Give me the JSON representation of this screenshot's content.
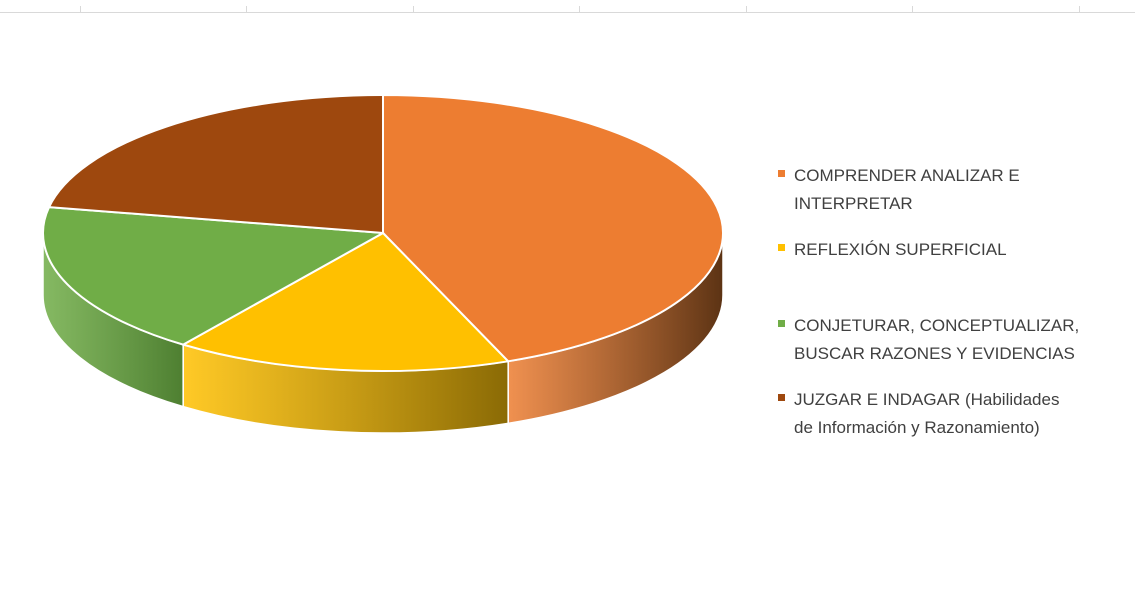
{
  "chart_data": {
    "type": "pie",
    "style": "3d",
    "legend_position": "right",
    "slices": [
      {
        "label": "COMPRENDER ANALIZAR E\nINTERPRETAR",
        "value": 44,
        "color": "#ED7D31",
        "side_color": "#5C3314"
      },
      {
        "label": "REFLEXIÓN SUPERFICIAL",
        "value": 16,
        "color": "#FFC000",
        "side_color": "#8A6A05"
      },
      {
        "label": "CONJETURAR, CONCEPTUALIZAR,\nBUSCAR RAZONES Y EVIDENCIAS",
        "value": 18,
        "color": "#70AD47",
        "side_color": "#4E7F31"
      },
      {
        "label": "JUZGAR E INDAGAR  (Habilidades\nde Información y Razonamiento)",
        "value": 22,
        "color": "#9E480E",
        "side_color": "#5A2A0A"
      }
    ]
  }
}
